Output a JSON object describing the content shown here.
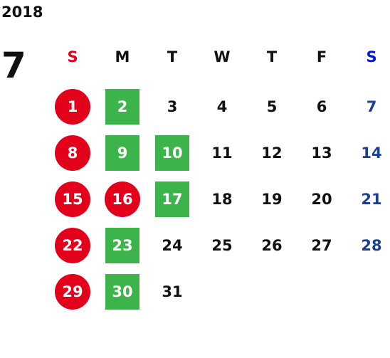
{
  "year": "2018",
  "month": "7",
  "weekdays": [
    {
      "label": "S",
      "color": "#e2001a"
    },
    {
      "label": "M",
      "color": "#111111"
    },
    {
      "label": "T",
      "color": "#111111"
    },
    {
      "label": "W",
      "color": "#111111"
    },
    {
      "label": "T",
      "color": "#111111"
    },
    {
      "label": "F",
      "color": "#111111"
    },
    {
      "label": "S",
      "color": "#0019c8"
    }
  ],
  "weeks": [
    [
      {
        "day": 1,
        "color": "#ffffff",
        "bg": "#e2001a",
        "shape": "circle"
      },
      {
        "day": 2,
        "color": "#ffffff",
        "bg": "#3cb44b",
        "shape": "square"
      },
      {
        "day": 3,
        "color": "#111111"
      },
      {
        "day": 4,
        "color": "#111111"
      },
      {
        "day": 5,
        "color": "#111111"
      },
      {
        "day": 6,
        "color": "#111111"
      },
      {
        "day": 7,
        "color": "#1d3f8f"
      }
    ],
    [
      {
        "day": 8,
        "color": "#ffffff",
        "bg": "#e2001a",
        "shape": "circle"
      },
      {
        "day": 9,
        "color": "#ffffff",
        "bg": "#3cb44b",
        "shape": "square"
      },
      {
        "day": 10,
        "color": "#ffffff",
        "bg": "#3cb44b",
        "shape": "square"
      },
      {
        "day": 11,
        "color": "#111111"
      },
      {
        "day": 12,
        "color": "#111111"
      },
      {
        "day": 13,
        "color": "#111111"
      },
      {
        "day": 14,
        "color": "#1d3f8f"
      }
    ],
    [
      {
        "day": 15,
        "color": "#ffffff",
        "bg": "#e2001a",
        "shape": "circle"
      },
      {
        "day": 16,
        "color": "#ffffff",
        "bg": "#e2001a",
        "shape": "circle"
      },
      {
        "day": 17,
        "color": "#ffffff",
        "bg": "#3cb44b",
        "shape": "square"
      },
      {
        "day": 18,
        "color": "#111111"
      },
      {
        "day": 19,
        "color": "#111111"
      },
      {
        "day": 20,
        "color": "#111111"
      },
      {
        "day": 21,
        "color": "#1d3f8f"
      }
    ],
    [
      {
        "day": 22,
        "color": "#ffffff",
        "bg": "#e2001a",
        "shape": "circle"
      },
      {
        "day": 23,
        "color": "#ffffff",
        "bg": "#3cb44b",
        "shape": "square"
      },
      {
        "day": 24,
        "color": "#111111"
      },
      {
        "day": 25,
        "color": "#111111"
      },
      {
        "day": 26,
        "color": "#111111"
      },
      {
        "day": 27,
        "color": "#111111"
      },
      {
        "day": 28,
        "color": "#1d3f8f"
      }
    ],
    [
      {
        "day": 29,
        "color": "#ffffff",
        "bg": "#e2001a",
        "shape": "circle"
      },
      {
        "day": 30,
        "color": "#ffffff",
        "bg": "#3cb44b",
        "shape": "square"
      },
      {
        "day": 31,
        "color": "#111111"
      }
    ]
  ]
}
